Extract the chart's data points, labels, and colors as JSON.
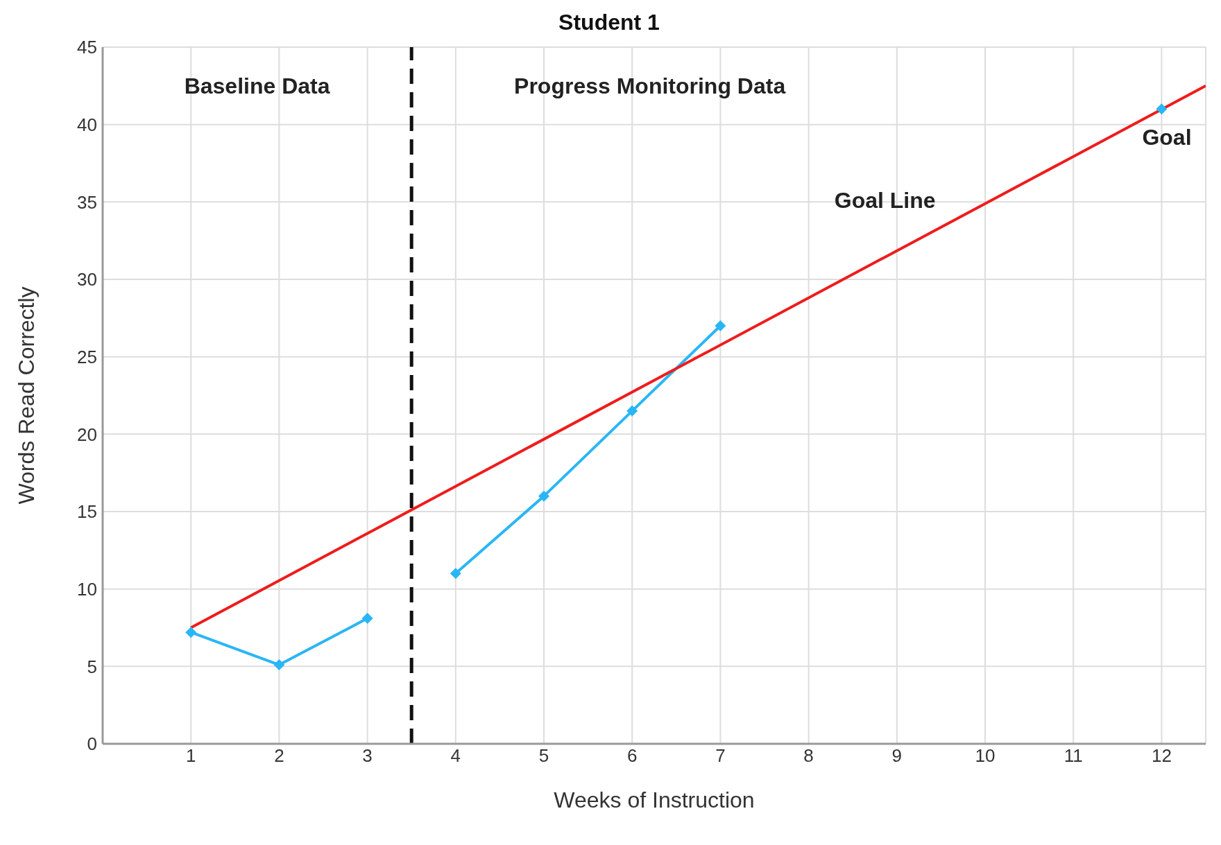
{
  "chart_data": {
    "type": "line",
    "title": "Student 1",
    "xlabel": "Weeks of Instruction",
    "ylabel": "Words Read Correctly",
    "xlim": [
      0,
      12.5
    ],
    "xticks": [
      1,
      2,
      3,
      4,
      5,
      6,
      7,
      8,
      9,
      10,
      11,
      12
    ],
    "ylim": [
      0,
      45
    ],
    "yticks": [
      0,
      5,
      10,
      15,
      20,
      25,
      30,
      35,
      40,
      45
    ],
    "grid": true,
    "legend": false,
    "marker": "diamond",
    "line_style": "solid",
    "series": [
      {
        "type": "line",
        "color": "#29b6f6",
        "x": [
          1,
          2,
          3
        ],
        "values": [
          7.2,
          5.1,
          8.1
        ]
      },
      {
        "type": "line",
        "color": "#29b6f6",
        "x": [
          4,
          5,
          6,
          7
        ],
        "values": [
          11,
          16,
          21.5,
          27
        ]
      },
      {
        "type": "scatter",
        "color": "#29b6f6",
        "x": [
          12
        ],
        "values": [
          41
        ]
      },
      {
        "type": "line",
        "color": "#ee1c1c",
        "x": [
          1,
          12.5
        ],
        "values": [
          7.5,
          42.5
        ],
        "marker": "none"
      }
    ],
    "ref_lines": [
      {
        "axis": "x",
        "value": 3.5,
        "color": "#111111",
        "line_style": "dashed"
      }
    ],
    "annotations": [
      "Baseline Data",
      "Progress Monitoring Data",
      {
        "text": "Goal Line",
        "x": 9,
        "y": 31.5
      },
      {
        "text": "Goal",
        "x": 12,
        "y": 41
      }
    ]
  }
}
